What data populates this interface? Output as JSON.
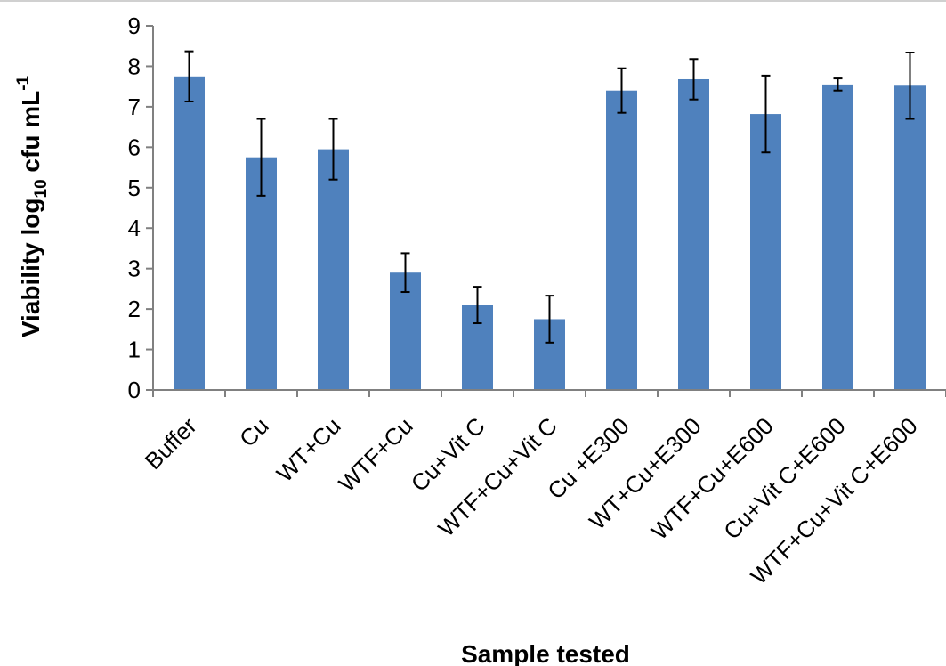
{
  "chart_data": {
    "type": "bar",
    "title": "",
    "xlabel": "Sample tested",
    "ylabel": {
      "main": "Viability log",
      "subscript": "10",
      "unit": " cfu mL",
      "superscript": "-1"
    },
    "ylim": [
      0,
      9
    ],
    "yticks": [
      0,
      1,
      2,
      3,
      4,
      5,
      6,
      7,
      8,
      9
    ],
    "grid": false,
    "legend": "none",
    "bar_color": "#4f81bd",
    "categories": [
      "Buffer",
      "Cu",
      "WT+Cu",
      "WTF+Cu",
      "Cu+Vit C",
      "WTF+Cu+Vit C",
      "Cu +E300",
      "WT+Cu+E300",
      "WTF+Cu+E600",
      "Cu+Vit C+E600",
      "WTF+Cu+Vit C+E600"
    ],
    "values": [
      7.75,
      5.75,
      5.95,
      2.9,
      2.1,
      1.75,
      7.4,
      7.68,
      6.82,
      7.55,
      7.52
    ],
    "error": [
      0.62,
      0.95,
      0.75,
      0.48,
      0.45,
      0.58,
      0.55,
      0.5,
      0.95,
      0.15,
      0.82
    ]
  }
}
